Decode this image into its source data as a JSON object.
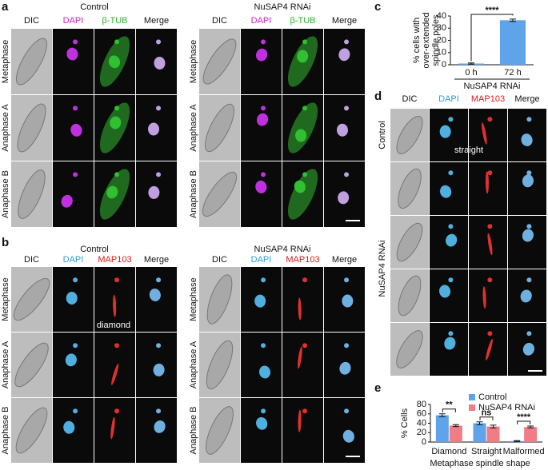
{
  "panels": {
    "a": {
      "label": "a",
      "groups": [
        {
          "title": "Control",
          "columns": [
            "DIC",
            "DAPI",
            "β-TUB",
            "Merge"
          ],
          "rows": [
            "Metaphase",
            "Anaphase A",
            "Anaphase B"
          ]
        },
        {
          "title": "NuSAP4 RNAi",
          "columns": [
            "DIC",
            "DAPI",
            "β-TUB",
            "Merge"
          ],
          "rows": [
            "Metaphase",
            "Anaphase A",
            "Anaphase B"
          ]
        }
      ]
    },
    "b": {
      "label": "b",
      "annotation": "diamond",
      "groups": [
        {
          "title": "Control",
          "columns": [
            "DIC",
            "DAPI",
            "MAP103",
            "Merge"
          ],
          "rows": [
            "Metaphase",
            "Anaphase A",
            "Anaphase B"
          ]
        },
        {
          "title": "NuSAP4 RNAi",
          "columns": [
            "DIC",
            "DAPI",
            "MAP103",
            "Merge"
          ],
          "rows": [
            "Metaphase",
            "Anaphase A",
            "Anaphase B"
          ]
        }
      ]
    },
    "c": {
      "label": "c"
    },
    "d": {
      "label": "d",
      "annotation": "straight",
      "columns": [
        "DIC",
        "DAPI",
        "MAP103",
        "Merge"
      ],
      "row_groups": [
        "Control",
        "NuSAP4 RNAi"
      ]
    },
    "e": {
      "label": "e"
    }
  },
  "chart_data": [
    {
      "type": "bar",
      "y_label": [
        "% cells with",
        "over-extended",
        "spindle poles"
      ],
      "x_label": "NuSAP4 RNAi",
      "categories": [
        "0 h",
        "72 h"
      ],
      "values": [
        1,
        36.5
      ],
      "errors": [
        0.5,
        1
      ],
      "color": "#5fa3e8",
      "ylim": [
        0,
        40
      ],
      "yticks": [
        0,
        10,
        20,
        30,
        40
      ],
      "annotations": [
        "****"
      ]
    },
    {
      "type": "grouped_bar",
      "y_label": "% Cells",
      "x_label": "Metaphase spindle shape",
      "categories": [
        "Diamond",
        "Straight",
        "Malformed"
      ],
      "legend": "top-right",
      "series": [
        {
          "name": "Control",
          "color": "#5fa3e8",
          "values": [
            57,
            40,
            2
          ],
          "errors": [
            3,
            3,
            1
          ]
        },
        {
          "name": "NuSAP4 RNAi",
          "color": "#f07d86",
          "values": [
            35,
            33,
            32
          ],
          "errors": [
            2,
            3,
            2
          ]
        }
      ],
      "ylim": [
        0,
        80
      ],
      "yticks": [
        0,
        20,
        40,
        60,
        80
      ],
      "annotations": [
        "**",
        "ns",
        "****"
      ]
    }
  ]
}
